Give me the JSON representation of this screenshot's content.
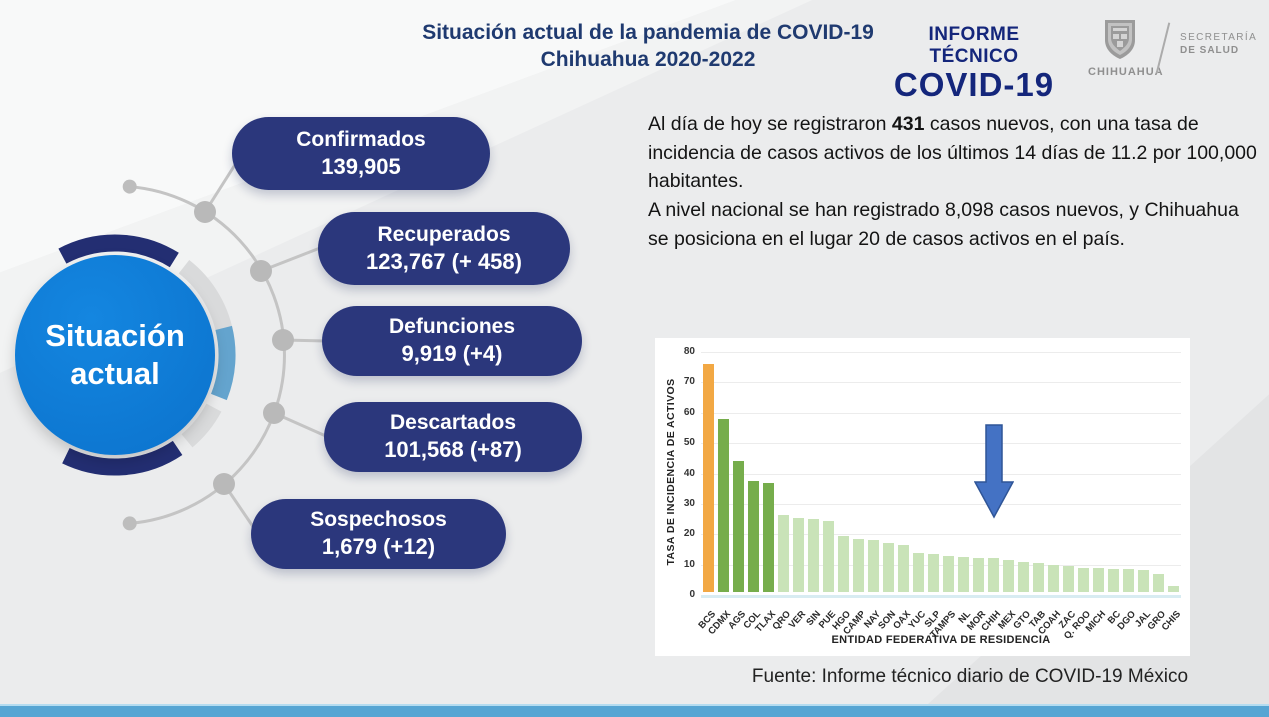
{
  "header": {
    "title_line1": "Situación actual de la pandemia de COVID-19",
    "title_line2": "Chihuahua 2020-2022",
    "brand_line1": "INFORME TÉCNICO",
    "brand_line2": "COVID-19",
    "logo_state": "CHIHUAHUA",
    "secretary_line1": "SECRETARÍA",
    "secretary_line2": "DE SALUD"
  },
  "hub": {
    "line1": "Situación",
    "line2": "actual"
  },
  "stats": [
    {
      "label": "Confirmados",
      "value": "139,905"
    },
    {
      "label": "Recuperados",
      "value": "123,767 (+ 458)"
    },
    {
      "label": "Defunciones",
      "value": "9,919 (+4)"
    },
    {
      "label": "Descartados",
      "value": "101,568 (+87)"
    },
    {
      "label": "Sospechosos",
      "value": "1,679 (+12)"
    }
  ],
  "summary": {
    "p1_before": "Al día de hoy se registraron ",
    "p1_bold": "431",
    "p1_after": " casos nuevos, con una tasa de incidencia de casos activos de los últimos 14 días de 11.2 por 100,000 habitantes.",
    "p2": "A nivel nacional se han registrado 8,098 casos nuevos, y Chihuahua se posiciona en el lugar 20 de casos activos en el país."
  },
  "chart_data": {
    "type": "bar",
    "title": "",
    "xlabel": "ENTIDAD FEDERATIVA DE RESIDENCIA",
    "ylabel": "TASA DE INCIDENCIA DE ACTIVOS",
    "ylim": [
      0,
      80
    ],
    "yticks": [
      0,
      10,
      20,
      30,
      40,
      50,
      60,
      70,
      80
    ],
    "grid": true,
    "legend": false,
    "categories": [
      "BCS",
      "CDMX",
      "AGS",
      "COL",
      "TLAX",
      "QRO",
      "VER",
      "SIN",
      "PUE",
      "HGO",
      "CAMP",
      "NAY",
      "SON",
      "OAX",
      "YUC",
      "SLP",
      "TAMPS",
      "NL",
      "MOR",
      "CHIH",
      "MEX",
      "GTO",
      "TAB",
      "COAH",
      "ZAC",
      "Q. ROO",
      "MICH",
      "BC",
      "DGO",
      "JAL",
      "GRO",
      "CHIS"
    ],
    "values": [
      75,
      57,
      43,
      36.5,
      36,
      25.5,
      24.5,
      24,
      23.5,
      18.5,
      17.5,
      17,
      16,
      15.5,
      13,
      12.5,
      12,
      11.5,
      11.3,
      11.2,
      10.5,
      10,
      9.5,
      9,
      8.5,
      8,
      7.8,
      7.6,
      7.5,
      7.2,
      6,
      2
    ],
    "bar_colors": [
      "#F2A844",
      "#76AD4C",
      "#76AD4C",
      "#76AD4C",
      "#76AD4C",
      "#C9E3B8",
      "#C9E3B8",
      "#C9E3B8",
      "#C9E3B8",
      "#C9E3B8",
      "#C9E3B8",
      "#C9E3B8",
      "#C9E3B8",
      "#C9E3B8",
      "#C9E3B8",
      "#C9E3B8",
      "#C9E3B8",
      "#C9E3B8",
      "#C9E3B8",
      "#C9E3B8",
      "#C9E3B8",
      "#C9E3B8",
      "#C9E3B8",
      "#C9E3B8",
      "#C9E3B8",
      "#C9E3B8",
      "#C9E3B8",
      "#C9E3B8",
      "#C9E3B8",
      "#C9E3B8",
      "#C9E3B8",
      "#C9E3B8"
    ],
    "highlight": {
      "category": "CHIH",
      "marker": "blue-down-arrow",
      "marker_color": "#4472C4",
      "marker_border": "#2F5597"
    }
  },
  "footer": {
    "source": "Fuente: Informe técnico diario de COVID-19 México"
  },
  "colors": {
    "stat_pill_navy": "#2B377C",
    "title_navy": "#1F3A70",
    "brand_navy": "#14267B",
    "hub_blue": "#0E7AD6",
    "ring_light_blue": "#64A4CE",
    "connector_gray": "#C4C4C4",
    "bottom_strip_blue": "#56A5D3"
  }
}
